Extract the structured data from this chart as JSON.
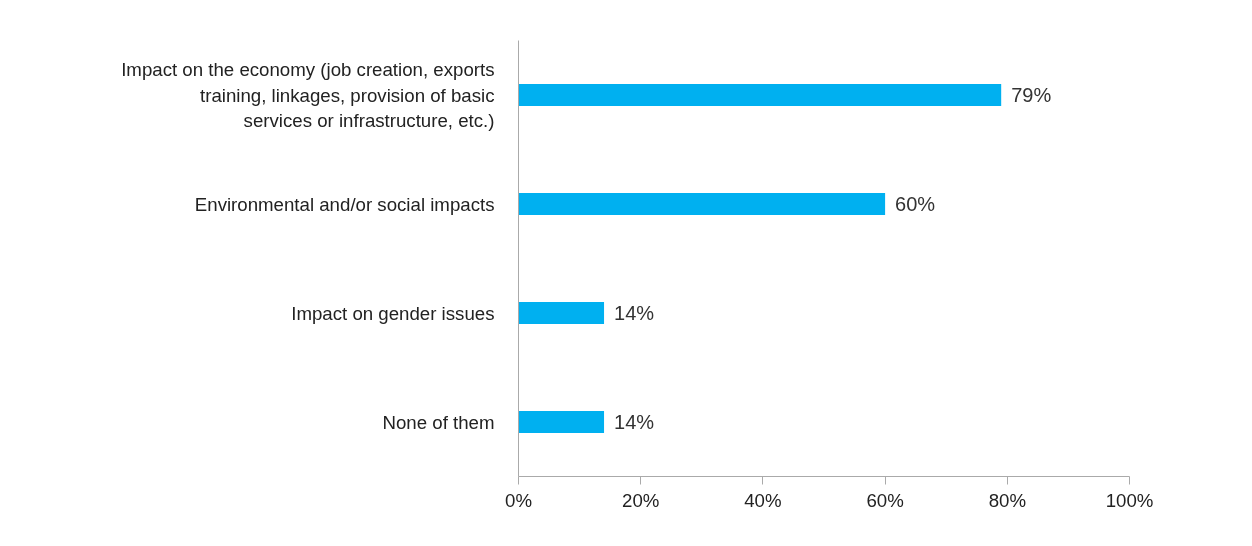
{
  "chart_data": {
    "type": "bar",
    "orientation": "horizontal",
    "categories": [
      "Impact on the economy (job creation, exports training, linkages, provision of basic services or infrastructure, etc.)",
      "Environmental and/or social impacts",
      "Impact on gender issues",
      "None of them"
    ],
    "values": [
      79,
      60,
      14,
      14
    ],
    "value_labels": [
      "79%",
      "60%",
      "14%",
      "14%"
    ],
    "color": "#00b0f0",
    "xlim": [
      0,
      100
    ],
    "xticks": [
      {
        "value": 0,
        "label": "0%"
      },
      {
        "value": 20,
        "label": "20%"
      },
      {
        "value": 40,
        "label": "40%"
      },
      {
        "value": 60,
        "label": "60%"
      },
      {
        "value": 80,
        "label": "80%"
      },
      {
        "value": 100,
        "label": "100%"
      }
    ],
    "grid": false
  }
}
